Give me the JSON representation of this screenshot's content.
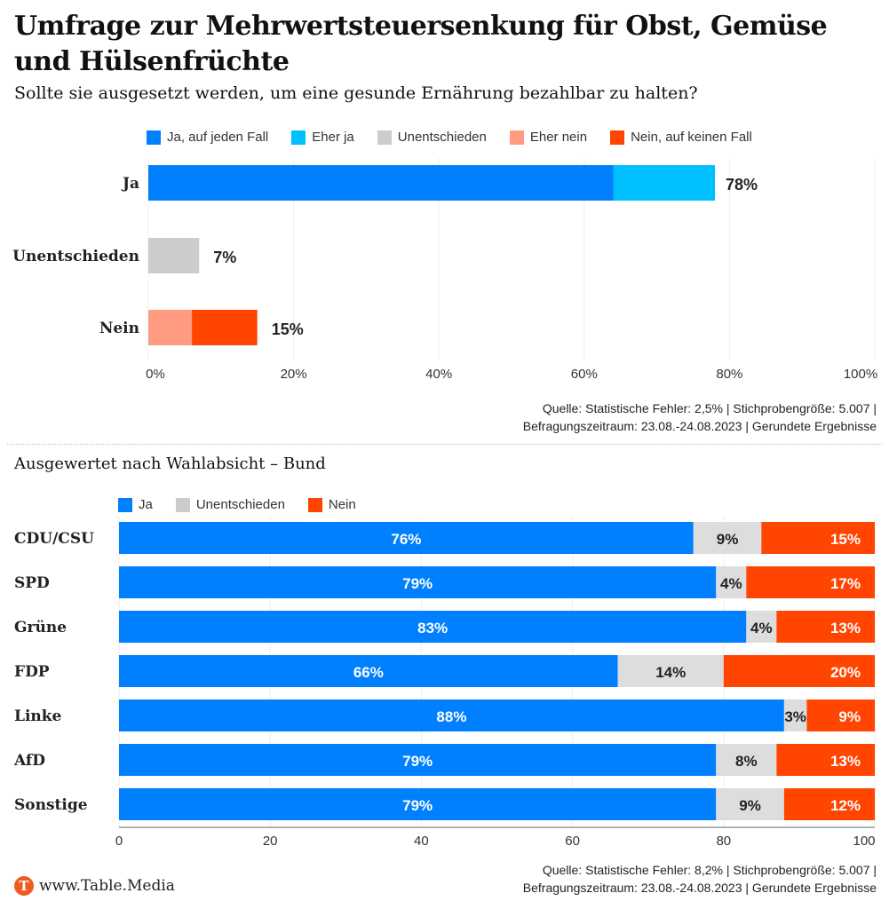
{
  "header": {
    "title": "Umfrage zur Mehrwertsteuersenkung für Obst, Gemüse und Hülsenfrüchte",
    "subtitle": "Sollte sie ausgesetzt werden, um eine gesunde Ernährung bezahlbar zu halten?"
  },
  "colors": {
    "ja_auf_jeden_fall": "#0080ff",
    "eher_ja": "#00bfff",
    "unentschieden": "#cccccc",
    "unentschieden_light": "#dddddd",
    "eher_nein": "#ff9b80",
    "nein_auf_keinen_fall": "#ff4500"
  },
  "chart_data": [
    {
      "type": "bar",
      "orientation": "horizontal",
      "stacked": true,
      "title": "Sollte sie ausgesetzt werden, um eine gesunde Ernährung bezahlbar zu halten?",
      "categories": [
        "Ja",
        "Unentschieden",
        "Nein"
      ],
      "series": [
        {
          "name": "Ja, auf jeden Fall",
          "values": [
            64,
            0,
            0
          ]
        },
        {
          "name": "Eher ja",
          "values": [
            14,
            0,
            0
          ]
        },
        {
          "name": "Unentschieden",
          "values": [
            0,
            7,
            0
          ]
        },
        {
          "name": "Eher nein",
          "values": [
            0,
            0,
            6
          ]
        },
        {
          "name": "Nein, auf keinen Fall",
          "values": [
            0,
            0,
            9
          ]
        }
      ],
      "totals": [
        78,
        7,
        15
      ],
      "total_labels": [
        "78%",
        "7%",
        "15%"
      ],
      "xlim": [
        0,
        100
      ],
      "xticks": [
        "0%",
        "20%",
        "40%",
        "60%",
        "80%",
        "100%"
      ],
      "legend": "top",
      "grid": true,
      "source": [
        "Quelle: Statistische Fehler: 2,5% | Stichprobengröße: 5.007 |",
        "Befragungszeitraum: 23.08.-24.08.2023 | Gerundete Ergebnisse"
      ]
    },
    {
      "type": "bar",
      "orientation": "horizontal",
      "stacked": true,
      "title": "Ausgewertet nach Wahlabsicht – Bund",
      "categories": [
        "CDU/CSU",
        "SPD",
        "Grüne",
        "FDP",
        "Linke",
        "AfD",
        "Sonstige"
      ],
      "series": [
        {
          "name": "Ja",
          "values": [
            76,
            79,
            83,
            66,
            88,
            79,
            79
          ]
        },
        {
          "name": "Unentschieden",
          "values": [
            9,
            4,
            4,
            14,
            3,
            8,
            9
          ]
        },
        {
          "name": "Nein",
          "values": [
            15,
            17,
            13,
            20,
            9,
            13,
            12
          ]
        }
      ],
      "xlim": [
        0,
        100
      ],
      "xticks": [
        "0",
        "20",
        "40",
        "60",
        "80",
        "100"
      ],
      "legend": "top",
      "grid": true,
      "source": [
        "Quelle: Statistische Fehler: 8,2% | Stichprobengröße: 5.007 |",
        "Befragungszeitraum: 23.08.-24.08.2023 | Gerundete Ergebnisse"
      ]
    }
  ],
  "section2": {
    "heading": "Ausgewertet nach Wahlabsicht – Bund"
  },
  "footer": {
    "brand": "www.Table.Media",
    "logo_letter": "T"
  }
}
